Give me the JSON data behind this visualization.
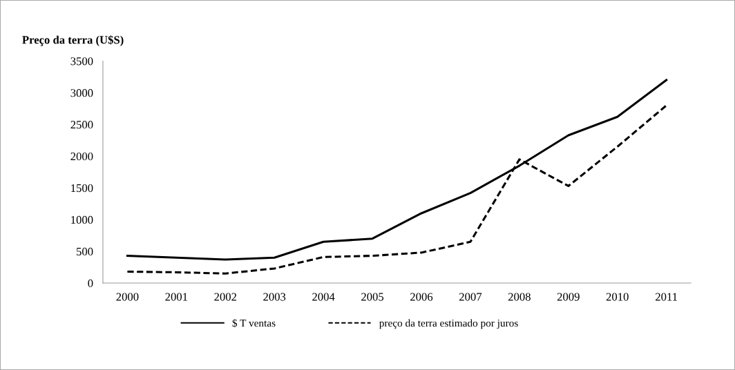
{
  "chart_data": {
    "type": "line",
    "title": "Preço da terra (U$S)",
    "categories": [
      "2000",
      "2001",
      "2002",
      "2003",
      "2004",
      "2005",
      "2006",
      "2007",
      "2008",
      "2009",
      "2010",
      "2011"
    ],
    "series": [
      {
        "name": "$ T ventas",
        "color": "#000000",
        "line_style": "solid",
        "values": [
          430,
          400,
          370,
          400,
          650,
          700,
          1100,
          1420,
          1850,
          2330,
          2620,
          3200
        ]
      },
      {
        "name": "preço da terra estimado por juros",
        "color": "#000000",
        "line_style": "dashed",
        "values": [
          180,
          170,
          150,
          230,
          410,
          430,
          480,
          650,
          1950,
          1530,
          2150,
          2800
        ]
      }
    ],
    "ylim": [
      0,
      3500
    ],
    "yticks": [
      0,
      500,
      1000,
      1500,
      2000,
      2500,
      3000,
      3500
    ],
    "grid": false,
    "legend": "bottom",
    "marker": "none"
  }
}
